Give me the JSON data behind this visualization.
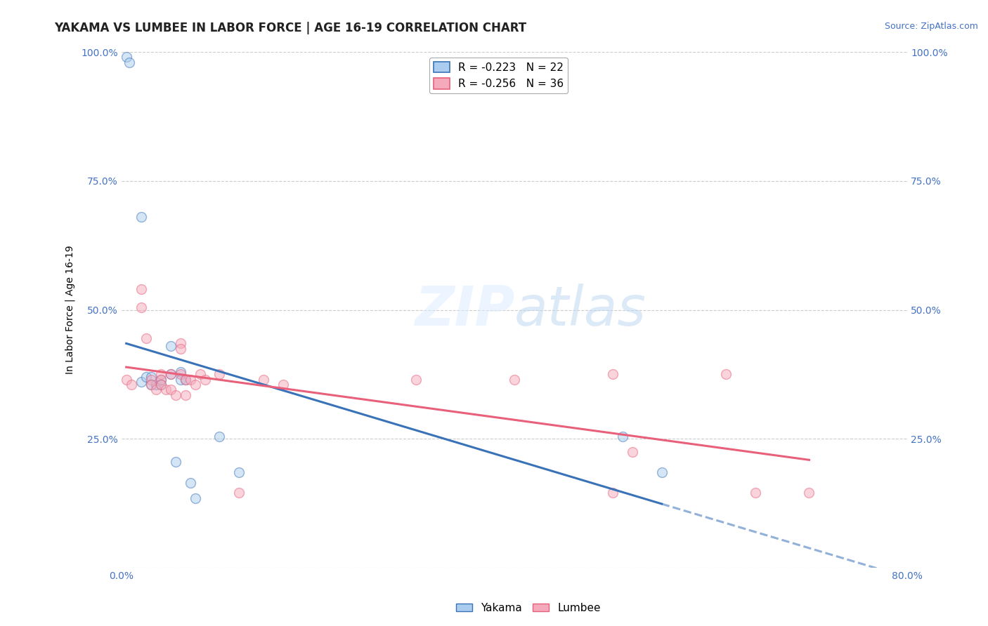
{
  "title": "YAKAMA VS LUMBEE IN LABOR FORCE | AGE 16-19 CORRELATION CHART",
  "source_text": "Source: ZipAtlas.com",
  "ylabel": "In Labor Force | Age 16-19",
  "x_min": 0.0,
  "x_max": 0.8,
  "y_min": 0.0,
  "y_max": 1.0,
  "x_ticks": [
    0.0,
    0.1,
    0.2,
    0.3,
    0.4,
    0.5,
    0.6,
    0.7,
    0.8
  ],
  "x_tick_labels": [
    "0.0%",
    "",
    "",
    "",
    "",
    "",
    "",
    "",
    "80.0%"
  ],
  "y_ticks": [
    0.0,
    0.25,
    0.5,
    0.75,
    1.0
  ],
  "y_tick_labels": [
    "",
    "25.0%",
    "50.0%",
    "75.0%",
    "100.0%"
  ],
  "grid_color": "#cccccc",
  "background_color": "#ffffff",
  "yakama_color": "#aaccee",
  "lumbee_color": "#f4aabb",
  "yakama_line_color": "#3a72b8",
  "lumbee_line_color": "#e8607a",
  "yakama_R": -0.223,
  "yakama_N": 22,
  "lumbee_R": -0.256,
  "lumbee_N": 36,
  "yakama_x": [
    0.005,
    0.008,
    0.02,
    0.02,
    0.025,
    0.03,
    0.03,
    0.035,
    0.04,
    0.04,
    0.05,
    0.05,
    0.055,
    0.06,
    0.06,
    0.065,
    0.07,
    0.075,
    0.1,
    0.12,
    0.51,
    0.55
  ],
  "yakama_y": [
    0.99,
    0.98,
    0.68,
    0.36,
    0.37,
    0.37,
    0.355,
    0.355,
    0.365,
    0.355,
    0.43,
    0.375,
    0.205,
    0.38,
    0.365,
    0.365,
    0.165,
    0.135,
    0.255,
    0.185,
    0.255,
    0.185
  ],
  "lumbee_x": [
    0.005,
    0.01,
    0.02,
    0.02,
    0.025,
    0.03,
    0.03,
    0.035,
    0.04,
    0.04,
    0.04,
    0.045,
    0.05,
    0.05,
    0.055,
    0.06,
    0.06,
    0.06,
    0.065,
    0.065,
    0.07,
    0.075,
    0.08,
    0.085,
    0.1,
    0.12,
    0.145,
    0.165,
    0.3,
    0.4,
    0.5,
    0.52,
    0.5,
    0.615,
    0.645,
    0.7
  ],
  "lumbee_y": [
    0.365,
    0.355,
    0.54,
    0.505,
    0.445,
    0.365,
    0.355,
    0.345,
    0.375,
    0.365,
    0.355,
    0.345,
    0.375,
    0.345,
    0.335,
    0.435,
    0.425,
    0.375,
    0.365,
    0.335,
    0.365,
    0.355,
    0.375,
    0.365,
    0.375,
    0.145,
    0.365,
    0.355,
    0.365,
    0.365,
    0.375,
    0.225,
    0.145,
    0.375,
    0.145,
    0.145
  ],
  "title_fontsize": 12,
  "axis_label_fontsize": 10,
  "tick_fontsize": 10,
  "legend_fontsize": 11,
  "marker_size": 10,
  "marker_alpha": 0.5,
  "line_width": 2.2
}
